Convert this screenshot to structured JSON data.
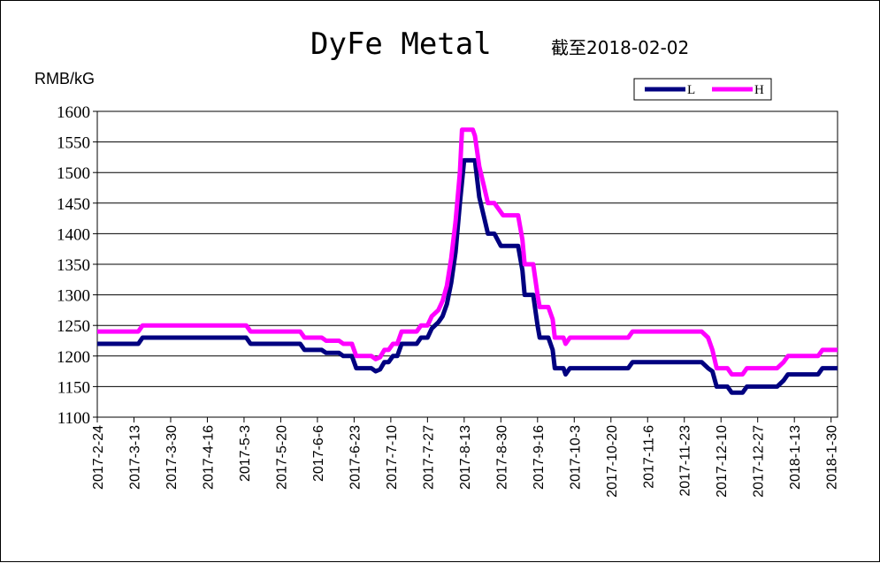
{
  "chart_data": {
    "type": "line",
    "title": "DyFe Metal",
    "subtitle": "截至2018-02-02",
    "ylabel": "RMB/kG",
    "ylim": [
      1100,
      1600
    ],
    "yticks": [
      1100,
      1150,
      1200,
      1250,
      1300,
      1350,
      1400,
      1450,
      1500,
      1550,
      1600
    ],
    "xlim": [
      "2017-02-24",
      "2018-02-02"
    ],
    "xticks": [
      "2017-2-24",
      "2017-3-13",
      "2017-3-30",
      "2017-4-16",
      "2017-5-3",
      "2017-5-20",
      "2017-6-6",
      "2017-6-23",
      "2017-7-10",
      "2017-7-27",
      "2017-8-13",
      "2017-8-30",
      "2017-9-16",
      "2017-10-3",
      "2017-10-20",
      "2017-11-6",
      "2017-11-23",
      "2017-12-10",
      "2017-12-27",
      "2018-1-13",
      "2018-1-30"
    ],
    "grid": "horizontal",
    "legend": "top-right",
    "series": [
      {
        "name": "L",
        "color": "#000080",
        "points": [
          [
            "2017-02-24",
            1220
          ],
          [
            "2017-03-15",
            1220
          ],
          [
            "2017-03-17",
            1230
          ],
          [
            "2017-05-04",
            1230
          ],
          [
            "2017-05-06",
            1220
          ],
          [
            "2017-05-29",
            1220
          ],
          [
            "2017-05-31",
            1210
          ],
          [
            "2017-06-08",
            1210
          ],
          [
            "2017-06-10",
            1205
          ],
          [
            "2017-06-16",
            1205
          ],
          [
            "2017-06-18",
            1200
          ],
          [
            "2017-06-22",
            1200
          ],
          [
            "2017-06-24",
            1180
          ],
          [
            "2017-07-01",
            1180
          ],
          [
            "2017-07-03",
            1175
          ],
          [
            "2017-07-05",
            1178
          ],
          [
            "2017-07-07",
            1190
          ],
          [
            "2017-07-09",
            1190
          ],
          [
            "2017-07-11",
            1200
          ],
          [
            "2017-07-13",
            1200
          ],
          [
            "2017-07-15",
            1220
          ],
          [
            "2017-07-22",
            1220
          ],
          [
            "2017-07-24",
            1230
          ],
          [
            "2017-07-27",
            1230
          ],
          [
            "2017-07-29",
            1245
          ],
          [
            "2017-08-01",
            1255
          ],
          [
            "2017-08-03",
            1265
          ],
          [
            "2017-08-05",
            1285
          ],
          [
            "2017-08-07",
            1320
          ],
          [
            "2017-08-09",
            1370
          ],
          [
            "2017-08-11",
            1450
          ],
          [
            "2017-08-13",
            1520
          ],
          [
            "2017-08-18",
            1520
          ],
          [
            "2017-08-20",
            1460
          ],
          [
            "2017-08-22",
            1430
          ],
          [
            "2017-08-24",
            1400
          ],
          [
            "2017-08-27",
            1400
          ],
          [
            "2017-08-30",
            1380
          ],
          [
            "2017-09-07",
            1380
          ],
          [
            "2017-09-09",
            1340
          ],
          [
            "2017-09-10",
            1300
          ],
          [
            "2017-09-14",
            1300
          ],
          [
            "2017-09-16",
            1250
          ],
          [
            "2017-09-17",
            1230
          ],
          [
            "2017-09-21",
            1230
          ],
          [
            "2017-09-23",
            1210
          ],
          [
            "2017-09-24",
            1180
          ],
          [
            "2017-09-28",
            1180
          ],
          [
            "2017-09-29",
            1170
          ],
          [
            "2017-10-01",
            1180
          ],
          [
            "2017-10-28",
            1180
          ],
          [
            "2017-10-30",
            1190
          ],
          [
            "2017-12-01",
            1190
          ],
          [
            "2017-12-04",
            1180
          ],
          [
            "2017-12-06",
            1175
          ],
          [
            "2017-12-08",
            1150
          ],
          [
            "2017-12-13",
            1150
          ],
          [
            "2017-12-15",
            1140
          ],
          [
            "2017-12-20",
            1140
          ],
          [
            "2017-12-22",
            1150
          ],
          [
            "2018-01-05",
            1150
          ],
          [
            "2018-01-08",
            1160
          ],
          [
            "2018-01-10",
            1170
          ],
          [
            "2018-01-24",
            1170
          ],
          [
            "2018-01-26",
            1180
          ],
          [
            "2018-02-02",
            1180
          ]
        ]
      },
      {
        "name": "H",
        "color": "#ff00ff",
        "points": [
          [
            "2017-02-24",
            1240
          ],
          [
            "2017-03-15",
            1240
          ],
          [
            "2017-03-17",
            1250
          ],
          [
            "2017-05-04",
            1250
          ],
          [
            "2017-05-06",
            1240
          ],
          [
            "2017-05-29",
            1240
          ],
          [
            "2017-05-31",
            1230
          ],
          [
            "2017-06-08",
            1230
          ],
          [
            "2017-06-10",
            1225
          ],
          [
            "2017-06-16",
            1225
          ],
          [
            "2017-06-18",
            1220
          ],
          [
            "2017-06-22",
            1220
          ],
          [
            "2017-06-24",
            1200
          ],
          [
            "2017-07-01",
            1200
          ],
          [
            "2017-07-03",
            1195
          ],
          [
            "2017-07-05",
            1198
          ],
          [
            "2017-07-07",
            1210
          ],
          [
            "2017-07-09",
            1210
          ],
          [
            "2017-07-11",
            1220
          ],
          [
            "2017-07-13",
            1220
          ],
          [
            "2017-07-15",
            1240
          ],
          [
            "2017-07-22",
            1240
          ],
          [
            "2017-07-24",
            1250
          ],
          [
            "2017-07-27",
            1250
          ],
          [
            "2017-07-29",
            1265
          ],
          [
            "2017-08-01",
            1275
          ],
          [
            "2017-08-03",
            1290
          ],
          [
            "2017-08-05",
            1315
          ],
          [
            "2017-08-07",
            1360
          ],
          [
            "2017-08-09",
            1420
          ],
          [
            "2017-08-11",
            1500
          ],
          [
            "2017-08-12",
            1570
          ],
          [
            "2017-08-17",
            1570
          ],
          [
            "2017-08-18",
            1560
          ],
          [
            "2017-08-20",
            1510
          ],
          [
            "2017-08-22",
            1480
          ],
          [
            "2017-08-24",
            1450
          ],
          [
            "2017-08-27",
            1450
          ],
          [
            "2017-08-29",
            1440
          ],
          [
            "2017-08-31",
            1430
          ],
          [
            "2017-09-07",
            1430
          ],
          [
            "2017-09-09",
            1390
          ],
          [
            "2017-09-10",
            1350
          ],
          [
            "2017-09-14",
            1350
          ],
          [
            "2017-09-16",
            1300
          ],
          [
            "2017-09-17",
            1280
          ],
          [
            "2017-09-21",
            1280
          ],
          [
            "2017-09-23",
            1260
          ],
          [
            "2017-09-24",
            1230
          ],
          [
            "2017-09-28",
            1230
          ],
          [
            "2017-09-29",
            1220
          ],
          [
            "2017-10-01",
            1230
          ],
          [
            "2017-10-28",
            1230
          ],
          [
            "2017-10-30",
            1240
          ],
          [
            "2017-12-01",
            1240
          ],
          [
            "2017-12-04",
            1230
          ],
          [
            "2017-12-06",
            1210
          ],
          [
            "2017-12-08",
            1180
          ],
          [
            "2017-12-13",
            1180
          ],
          [
            "2017-12-15",
            1170
          ],
          [
            "2017-12-20",
            1170
          ],
          [
            "2017-12-22",
            1180
          ],
          [
            "2018-01-05",
            1180
          ],
          [
            "2018-01-08",
            1190
          ],
          [
            "2018-01-10",
            1200
          ],
          [
            "2018-01-24",
            1200
          ],
          [
            "2018-01-26",
            1210
          ],
          [
            "2018-02-02",
            1210
          ]
        ]
      }
    ]
  }
}
